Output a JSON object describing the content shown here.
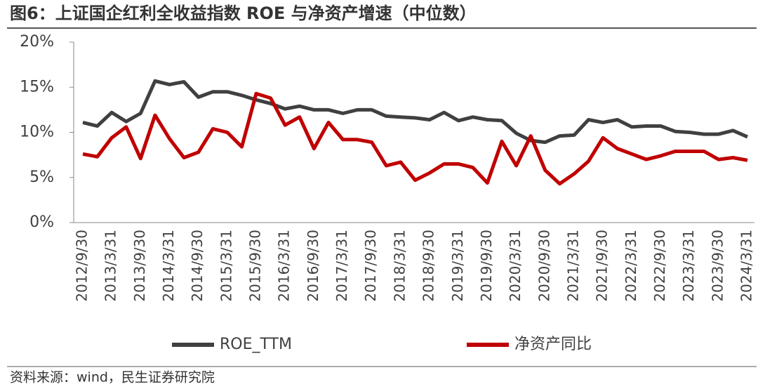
{
  "chart_data": {
    "type": "line",
    "title": "图6：上证国企红利全收益指数 ROE 与净资产增速（中位数）",
    "source": "资料来源：wind，民生证券研究院",
    "categories": [
      "2012/9/30",
      null,
      "2013/3/31",
      null,
      "2013/9/30",
      null,
      "2014/3/31",
      null,
      "2014/9/30",
      null,
      "2015/3/31",
      null,
      "2015/9/30",
      null,
      "2016/3/31",
      null,
      "2016/9/30",
      null,
      "2017/3/31",
      null,
      "2017/9/30",
      null,
      "2018/3/31",
      null,
      "2018/9/30",
      null,
      "2019/3/31",
      null,
      "2019/9/30",
      null,
      "2020/3/31",
      null,
      "2020/9/30",
      null,
      "2021/3/31",
      null,
      "2021/9/30",
      null,
      "2022/3/31",
      null,
      "2022/9/30",
      null,
      "2023/3/31",
      null,
      "2023/9/30",
      null,
      "2024/3/31"
    ],
    "series": [
      {
        "name": "ROE_TTM",
        "color": "#404040",
        "values": [
          11.1,
          10.7,
          12.2,
          11.2,
          12.1,
          15.7,
          15.3,
          15.6,
          13.9,
          14.5,
          14.5,
          14.1,
          13.6,
          13.2,
          12.6,
          12.9,
          12.5,
          12.5,
          12.1,
          12.5,
          12.5,
          11.8,
          11.7,
          11.6,
          11.4,
          12.2,
          11.3,
          11.7,
          11.4,
          11.3,
          9.9,
          9.1,
          8.9,
          9.6,
          9.7,
          11.4,
          11.1,
          11.4,
          10.6,
          10.7,
          10.7,
          10.1,
          10.0,
          9.8,
          9.8,
          10.2,
          9.5
        ]
      },
      {
        "name": "净资产同比",
        "color": "#c00000",
        "values": [
          7.6,
          7.3,
          9.4,
          10.6,
          7.1,
          11.9,
          9.3,
          7.2,
          7.8,
          10.4,
          10.0,
          8.4,
          14.3,
          13.8,
          10.8,
          11.7,
          8.2,
          11.1,
          9.2,
          9.2,
          8.9,
          6.3,
          6.7,
          4.7,
          5.5,
          6.5,
          6.5,
          6.1,
          4.4,
          9.0,
          6.3,
          9.6,
          5.8,
          4.3,
          5.4,
          6.8,
          9.4,
          8.2,
          7.6,
          7.0,
          7.4,
          7.9,
          7.9,
          7.9,
          7.0,
          7.2,
          6.9
        ]
      }
    ],
    "ylim": [
      0,
      20
    ],
    "yticks": [
      {
        "value": 0,
        "label": "0%"
      },
      {
        "value": 5,
        "label": "5%"
      },
      {
        "value": 10,
        "label": "10%"
      },
      {
        "value": 15,
        "label": "15%"
      },
      {
        "value": 20,
        "label": "20%"
      }
    ],
    "grid": false,
    "legend": "bottom"
  }
}
